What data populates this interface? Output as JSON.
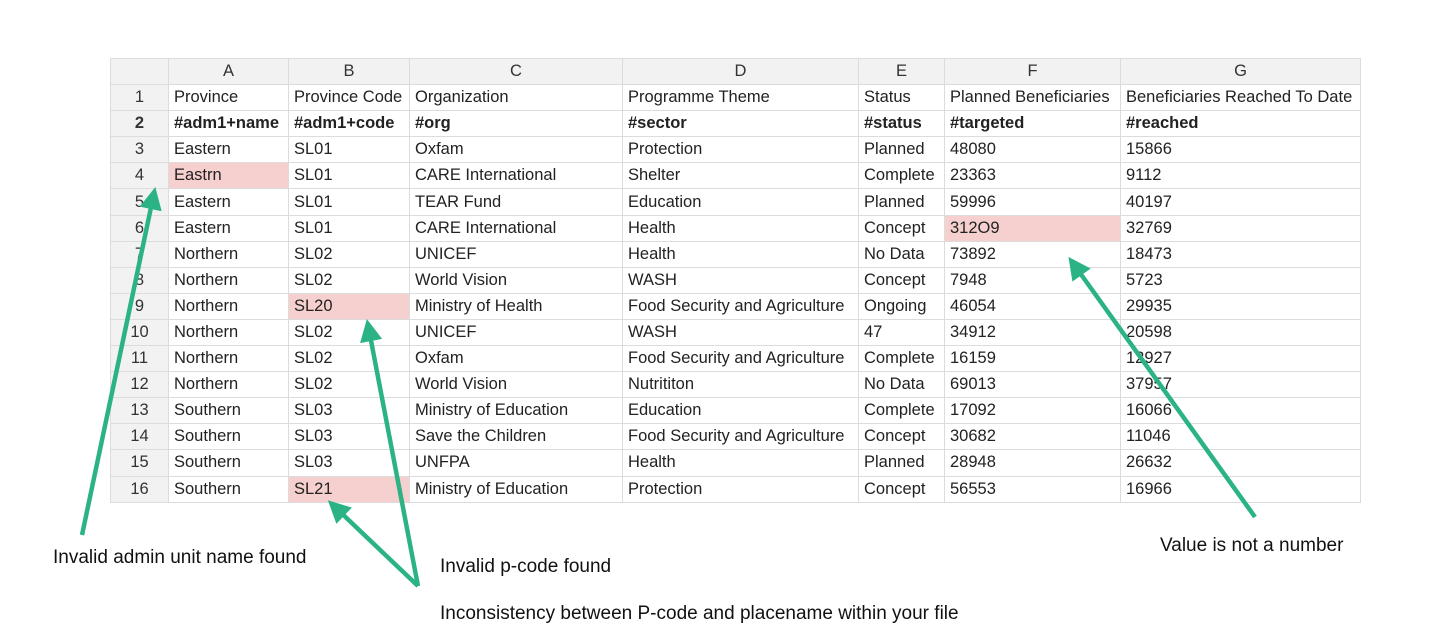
{
  "columns": [
    "A",
    "B",
    "C",
    "D",
    "E",
    "F",
    "G"
  ],
  "rows": [
    {
      "n": "1",
      "cells": [
        "Province",
        "Province Code",
        "Organization",
        "Programme Theme",
        "Status",
        "Planned Beneficiaries",
        "Beneficiaries Reached To Date"
      ]
    },
    {
      "n": "2",
      "cells": [
        "#adm1+name",
        "#adm1+code",
        "#org",
        "#sector",
        "#status",
        "#targeted",
        "#reached"
      ]
    },
    {
      "n": "3",
      "cells": [
        "Eastern",
        "SL01",
        "Oxfam",
        "Protection",
        "Planned",
        "48080",
        "15866"
      ]
    },
    {
      "n": "4",
      "cells": [
        "Eastrn",
        "SL01",
        "CARE International",
        "Shelter",
        "Complete",
        "23363",
        "9112"
      ]
    },
    {
      "n": "5",
      "cells": [
        "Eastern",
        "SL01",
        "TEAR Fund",
        "Education",
        "Planned",
        "59996",
        "40197"
      ]
    },
    {
      "n": "6",
      "cells": [
        "Eastern",
        "SL01",
        "CARE International",
        "Health",
        "Concept",
        "312O9",
        "32769"
      ]
    },
    {
      "n": "7",
      "cells": [
        "Northern",
        "SL02",
        "UNICEF",
        "Health",
        "No Data",
        "73892",
        "18473"
      ]
    },
    {
      "n": "8",
      "cells": [
        "Northern",
        "SL02",
        "World Vision",
        "WASH",
        "Concept",
        "7948",
        "5723"
      ]
    },
    {
      "n": "9",
      "cells": [
        "Northern",
        "SL20",
        "Ministry of Health",
        "Food Security and Agriculture",
        "Ongoing",
        "46054",
        "29935"
      ]
    },
    {
      "n": "10",
      "cells": [
        "Northern",
        "SL02",
        "UNICEF",
        "WASH",
        "47",
        "34912",
        "20598"
      ]
    },
    {
      "n": "11",
      "cells": [
        "Northern",
        "SL02",
        "Oxfam",
        "Food Security and Agriculture",
        "Complete",
        "16159",
        "12927"
      ]
    },
    {
      "n": "12",
      "cells": [
        "Northern",
        "SL02",
        "World Vision",
        "Nutrititon",
        "No Data",
        "69013",
        "37957"
      ]
    },
    {
      "n": "13",
      "cells": [
        "Southern",
        "SL03",
        "Ministry of Education",
        "Education",
        "Complete",
        "17092",
        "16066"
      ]
    },
    {
      "n": "14",
      "cells": [
        "Southern",
        "SL03",
        "Save the Children",
        "Food Security and Agriculture",
        "Concept",
        "30682",
        "11046"
      ]
    },
    {
      "n": "15",
      "cells": [
        "Southern",
        "SL03",
        "UNFPA",
        "Health",
        "Planned",
        "28948",
        "26632"
      ]
    },
    {
      "n": "16",
      "cells": [
        "Southern",
        "SL21",
        "Ministry of Education",
        "Protection",
        "Concept",
        "56553",
        "16966"
      ]
    }
  ],
  "annotations": {
    "invalid_admin": "Invalid admin unit name found",
    "invalid_pcode": "Invalid p-code found",
    "inconsistency": "Inconsistency between P-code and placename within your file",
    "not_number": "Value is not a number"
  },
  "colors": {
    "arrow": "#2bb386",
    "error_fill": "#f6cfcf",
    "header_fill": "#f2f2f2"
  }
}
